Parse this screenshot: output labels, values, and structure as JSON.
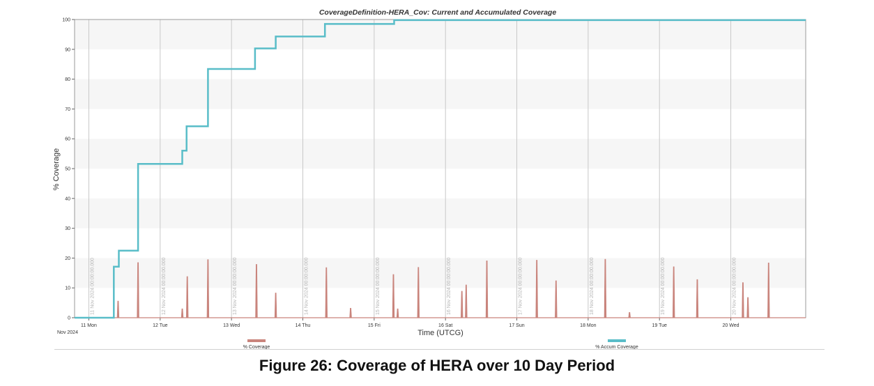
{
  "figure_caption": "Figure 26: Coverage of HERA over 10 Day Period",
  "colors": {
    "accum": "#59bdc8",
    "current": "#c9847c",
    "band": "#f6f6f6",
    "grid": "#c8c8c8"
  },
  "chart_data": {
    "type": "line",
    "title": "CoverageDefinition-HERA_Cov:  Current and Accumulated Coverage",
    "xlabel": "Time (UTCG)",
    "ylabel": "% Coverage",
    "ylim": [
      0,
      100
    ],
    "xlim": [
      -0.2,
      10.05
    ],
    "yticks": [
      0,
      10,
      20,
      30,
      40,
      50,
      60,
      70,
      80,
      90,
      100
    ],
    "x_unit": "days since 11 Nov 2024 00:00:00.000 UTCG",
    "x_ticks": [
      {
        "x": 0,
        "label": "11 Mon"
      },
      {
        "x": 1,
        "label": "12 Tue"
      },
      {
        "x": 2,
        "label": "13 Wed"
      },
      {
        "x": 3,
        "label": "14 Thu"
      },
      {
        "x": 4,
        "label": "15 Fri"
      },
      {
        "x": 5,
        "label": "16 Sat"
      },
      {
        "x": 6,
        "label": "17 Sun"
      },
      {
        "x": 7,
        "label": "18 Mon"
      },
      {
        "x": 8,
        "label": "19 Tue"
      },
      {
        "x": 9,
        "label": "20 Wed"
      }
    ],
    "x_axis_month_label": "Nov 2024",
    "gridline_date_labels": [
      "11 Nov 2024 00:00:00.000",
      "12 Nov 2024 00:00:00.000",
      "13 Nov 2024 00:00:00.000",
      "14 Nov 2024 00:00:00.000",
      "15 Nov 2024 00:00:00.000",
      "16 Nov 2024 00:00:00.000",
      "17 Nov 2024 00:00:00.000",
      "18 Nov 2024 00:00:00.000",
      "19 Nov 2024 00:00:00.000",
      "20 Nov 2024 00:00:00.000"
    ],
    "legend": [
      {
        "name": "% Coverage",
        "color": "#c9847c"
      },
      {
        "name": "% Accum Coverage",
        "color": "#59bdc8"
      }
    ],
    "series": [
      {
        "name": "% Accum Coverage",
        "style": "step",
        "points": [
          [
            -0.2,
            0
          ],
          [
            0.35,
            0
          ],
          [
            0.35,
            17.1
          ],
          [
            0.42,
            17.1
          ],
          [
            0.42,
            22.5
          ],
          [
            0.69,
            22.5
          ],
          [
            0.69,
            51.6
          ],
          [
            1.31,
            51.6
          ],
          [
            1.31,
            56.0
          ],
          [
            1.37,
            56.0
          ],
          [
            1.37,
            64.2
          ],
          [
            1.67,
            64.2
          ],
          [
            1.67,
            83.4
          ],
          [
            2.33,
            83.4
          ],
          [
            2.33,
            90.3
          ],
          [
            2.62,
            90.3
          ],
          [
            2.62,
            94.3
          ],
          [
            3.31,
            94.3
          ],
          [
            3.31,
            98.5
          ],
          [
            4.28,
            98.5
          ],
          [
            4.28,
            99.8
          ],
          [
            10.05,
            99.8
          ]
        ]
      },
      {
        "name": "% Coverage",
        "style": "spikes",
        "spikes": [
          {
            "x": 0.41,
            "y": 5.6
          },
          {
            "x": 0.69,
            "y": 18.5
          },
          {
            "x": 1.31,
            "y": 3.0
          },
          {
            "x": 1.38,
            "y": 13.8
          },
          {
            "x": 1.67,
            "y": 19.5
          },
          {
            "x": 2.35,
            "y": 17.9
          },
          {
            "x": 2.62,
            "y": 8.3
          },
          {
            "x": 3.33,
            "y": 16.8
          },
          {
            "x": 3.67,
            "y": 3.2
          },
          {
            "x": 4.27,
            "y": 14.5
          },
          {
            "x": 4.33,
            "y": 3.0
          },
          {
            "x": 4.62,
            "y": 16.9
          },
          {
            "x": 5.23,
            "y": 8.9
          },
          {
            "x": 5.29,
            "y": 11.0
          },
          {
            "x": 5.58,
            "y": 19.1
          },
          {
            "x": 6.28,
            "y": 19.3
          },
          {
            "x": 6.55,
            "y": 12.4
          },
          {
            "x": 7.24,
            "y": 19.6
          },
          {
            "x": 7.58,
            "y": 1.8
          },
          {
            "x": 8.2,
            "y": 17.1
          },
          {
            "x": 8.53,
            "y": 12.8
          },
          {
            "x": 9.17,
            "y": 11.8
          },
          {
            "x": 9.24,
            "y": 6.8
          },
          {
            "x": 9.53,
            "y": 18.4
          }
        ]
      }
    ]
  }
}
